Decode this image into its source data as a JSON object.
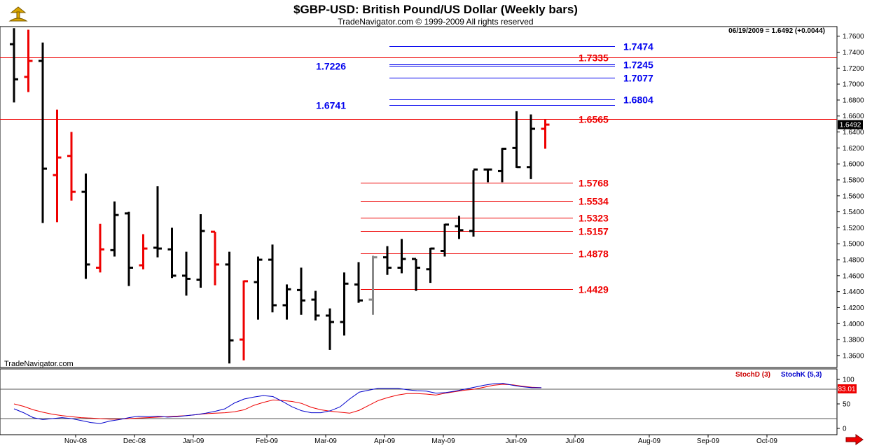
{
  "header": {
    "title": "$GBP-USD:  British Pound/US Dollar  (Weekly bars)",
    "subtitle": "TradeNavigator.com © 1999-2009 All rights reserved"
  },
  "quote_line": "06/19/2009 = 1.6492 (+0.0044)",
  "last_price_label": "1.6492",
  "brand_label": "TradeNavigator.com",
  "stoch": {
    "legend_d": "StochD (3)",
    "legend_k": "StochK (5,3)",
    "value_label": "83.01",
    "ticks": [
      "100",
      "50",
      "0"
    ],
    "levels": [
      80,
      20
    ]
  },
  "colors": {
    "up_bar": "#000000",
    "down_bar": "#ee0000",
    "neutral_bar": "#888888",
    "fib_red": "#ee0000",
    "fib_blue": "#0000ee",
    "stoch_d": "#ee0000",
    "stoch_k": "#0000cc"
  },
  "icons": {
    "logo": "trumpet-logo-icon",
    "scroll": "arrow-right-icon"
  },
  "chart_data": {
    "type": "ohlc",
    "y_ticks": [
      "1.3600",
      "1.3800",
      "1.4000",
      "1.4200",
      "1.4400",
      "1.4600",
      "1.4800",
      "1.5000",
      "1.5200",
      "1.5400",
      "1.5600",
      "1.5800",
      "1.6000",
      "1.6200",
      "1.6400",
      "1.6600",
      "1.6800",
      "1.7000",
      "1.7200",
      "1.7400",
      "1.7600"
    ],
    "ylim": [
      1.345,
      1.772
    ],
    "x_labels": [
      "Nov-08",
      "Dec-08",
      "Jan-09",
      "Feb-09",
      "Mar-09",
      "Apr-09",
      "May-09",
      "Jun-09",
      "Jul-09",
      "Aug-09",
      "Sep-09",
      "Oct-09"
    ],
    "price_levels": [
      {
        "value": 1.7474,
        "label": "1.7474",
        "color": "blue",
        "x_start": 30,
        "side": "right"
      },
      {
        "value": 1.7335,
        "label": "1.7335",
        "color": "red",
        "x_start": 0,
        "side": "right"
      },
      {
        "value": 1.7245,
        "label": "1.7245",
        "color": "blue",
        "x_start": 30,
        "side": "right"
      },
      {
        "value": 1.7226,
        "label": "1.7226",
        "color": "blue",
        "x_start": 30,
        "side": "left"
      },
      {
        "value": 1.7077,
        "label": "1.7077",
        "color": "blue",
        "x_start": 30,
        "side": "right"
      },
      {
        "value": 1.6804,
        "label": "1.6804",
        "color": "blue",
        "x_start": 30,
        "side": "right"
      },
      {
        "value": 1.6741,
        "label": "1.6741",
        "color": "blue",
        "x_start": 30,
        "side": "left"
      },
      {
        "value": 1.6565,
        "label": "1.6565",
        "color": "red",
        "x_start": 0,
        "side": "right"
      },
      {
        "value": 1.5768,
        "label": "1.5768",
        "color": "red",
        "x_start": 28,
        "side": "right"
      },
      {
        "value": 1.5534,
        "label": "1.5534",
        "color": "red",
        "x_start": 28,
        "side": "right"
      },
      {
        "value": 1.5323,
        "label": "1.5323",
        "color": "red",
        "x_start": 28,
        "side": "right"
      },
      {
        "value": 1.5157,
        "label": "1.5157",
        "color": "red",
        "x_start": 28,
        "side": "right"
      },
      {
        "value": 1.4878,
        "label": "1.4878",
        "color": "red",
        "x_start": 28,
        "side": "right"
      },
      {
        "value": 1.4429,
        "label": "1.4429",
        "color": "red",
        "x_start": 28,
        "side": "right"
      }
    ],
    "bars": [
      {
        "h": 1.77,
        "l": 1.677,
        "o": 1.75,
        "c": 1.706,
        "d": "up"
      },
      {
        "h": 1.768,
        "l": 1.69,
        "o": 1.709,
        "c": 1.729,
        "d": "down"
      },
      {
        "h": 1.752,
        "l": 1.526,
        "o": 1.729,
        "c": 1.594,
        "d": "up"
      },
      {
        "h": 1.668,
        "l": 1.527,
        "o": 1.586,
        "c": 1.608,
        "d": "down"
      },
      {
        "h": 1.64,
        "l": 1.554,
        "o": 1.61,
        "c": 1.565,
        "d": "down"
      },
      {
        "h": 1.588,
        "l": 1.456,
        "o": 1.565,
        "c": 1.474,
        "d": "up"
      },
      {
        "h": 1.525,
        "l": 1.464,
        "o": 1.47,
        "c": 1.493,
        "d": "down"
      },
      {
        "h": 1.553,
        "l": 1.484,
        "o": 1.492,
        "c": 1.536,
        "d": "up"
      },
      {
        "h": 1.54,
        "l": 1.447,
        "o": 1.538,
        "c": 1.47,
        "d": "up"
      },
      {
        "h": 1.512,
        "l": 1.468,
        "o": 1.473,
        "c": 1.494,
        "d": "down"
      },
      {
        "h": 1.572,
        "l": 1.483,
        "o": 1.495,
        "c": 1.494,
        "d": "up"
      },
      {
        "h": 1.52,
        "l": 1.457,
        "o": 1.493,
        "c": 1.46,
        "d": "up"
      },
      {
        "h": 1.49,
        "l": 1.435,
        "o": 1.46,
        "c": 1.456,
        "d": "up"
      },
      {
        "h": 1.537,
        "l": 1.445,
        "o": 1.455,
        "c": 1.516,
        "d": "up"
      },
      {
        "h": 1.515,
        "l": 1.448,
        "o": 1.515,
        "c": 1.474,
        "d": "down"
      },
      {
        "h": 1.49,
        "l": 1.35,
        "o": 1.474,
        "c": 1.379,
        "d": "up"
      },
      {
        "h": 1.454,
        "l": 1.354,
        "o": 1.38,
        "c": 1.453,
        "d": "down"
      },
      {
        "h": 1.484,
        "l": 1.405,
        "o": 1.452,
        "c": 1.48,
        "d": "up"
      },
      {
        "h": 1.499,
        "l": 1.414,
        "o": 1.48,
        "c": 1.423,
        "d": "up"
      },
      {
        "h": 1.449,
        "l": 1.405,
        "o": 1.423,
        "c": 1.443,
        "d": "up"
      },
      {
        "h": 1.47,
        "l": 1.411,
        "o": 1.442,
        "c": 1.429,
        "d": "up"
      },
      {
        "h": 1.441,
        "l": 1.404,
        "o": 1.43,
        "c": 1.41,
        "d": "up"
      },
      {
        "h": 1.419,
        "l": 1.367,
        "o": 1.41,
        "c": 1.402,
        "d": "up"
      },
      {
        "h": 1.464,
        "l": 1.385,
        "o": 1.402,
        "c": 1.45,
        "d": "up"
      },
      {
        "h": 1.477,
        "l": 1.426,
        "o": 1.449,
        "c": 1.429,
        "d": "up"
      },
      {
        "h": 1.485,
        "l": 1.411,
        "o": 1.43,
        "c": 1.483,
        "d": "neutral"
      },
      {
        "h": 1.497,
        "l": 1.461,
        "o": 1.483,
        "c": 1.47,
        "d": "up"
      },
      {
        "h": 1.506,
        "l": 1.463,
        "o": 1.47,
        "c": 1.481,
        "d": "up"
      },
      {
        "h": 1.481,
        "l": 1.441,
        "o": 1.481,
        "c": 1.47,
        "d": "up"
      },
      {
        "h": 1.495,
        "l": 1.451,
        "o": 1.468,
        "c": 1.494,
        "d": "up"
      },
      {
        "h": 1.525,
        "l": 1.484,
        "o": 1.491,
        "c": 1.524,
        "d": "up"
      },
      {
        "h": 1.535,
        "l": 1.506,
        "o": 1.522,
        "c": 1.517,
        "d": "up"
      },
      {
        "h": 1.592,
        "l": 1.509,
        "o": 1.516,
        "c": 1.593,
        "d": "up"
      },
      {
        "h": 1.593,
        "l": 1.577,
        "o": 1.593,
        "c": 1.593,
        "d": "up"
      },
      {
        "h": 1.62,
        "l": 1.577,
        "o": 1.591,
        "c": 1.619,
        "d": "up"
      },
      {
        "h": 1.666,
        "l": 1.595,
        "o": 1.62,
        "c": 1.596,
        "d": "up"
      },
      {
        "h": 1.662,
        "l": 1.581,
        "o": 1.596,
        "c": 1.644,
        "d": "up"
      },
      {
        "h": 1.656,
        "l": 1.619,
        "o": 1.644,
        "c": 1.6492,
        "d": "down"
      }
    ],
    "stoch_d": [
      50,
      45,
      38,
      33,
      29,
      26,
      24,
      22,
      21,
      20,
      19,
      19,
      20,
      21,
      22,
      23,
      24,
      25,
      26,
      28,
      30,
      31,
      32,
      34,
      38,
      47,
      53,
      58,
      57,
      55,
      51,
      43,
      38,
      35,
      33,
      31,
      37,
      47,
      57,
      63,
      68,
      71,
      71,
      70,
      68,
      72,
      75,
      78,
      80,
      84,
      88,
      90,
      89,
      86,
      84,
      83
    ],
    "stoch_k": [
      40,
      32,
      22,
      18,
      20,
      22,
      20,
      16,
      12,
      10,
      15,
      18,
      22,
      25,
      24,
      25,
      23,
      24,
      26,
      28,
      31,
      35,
      40,
      52,
      60,
      64,
      67,
      65,
      55,
      44,
      36,
      32,
      32,
      36,
      44,
      60,
      74,
      78,
      82,
      82,
      82,
      79,
      77,
      76,
      72,
      73,
      76,
      80,
      84,
      88,
      91,
      92,
      88,
      85,
      83,
      83
    ]
  }
}
